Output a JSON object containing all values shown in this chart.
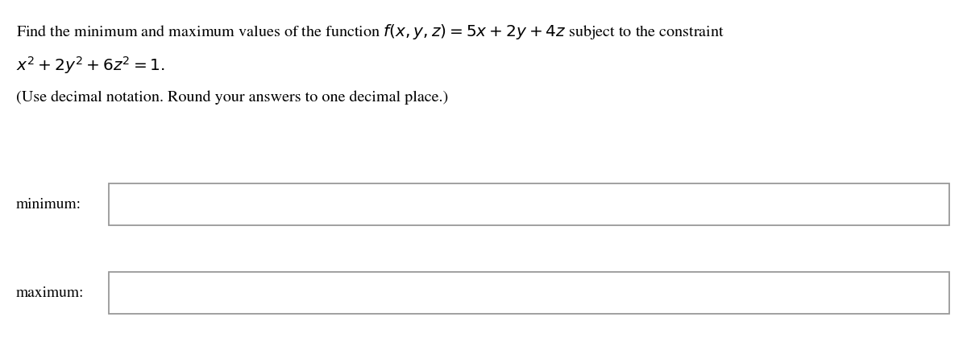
{
  "background_color": "#ffffff",
  "line1": "Find the minimum and maximum values of the function $f(x, y, z) = 5x + 2y + 4z$ subject to the constraint",
  "line2": "$x^2 + 2y^2 + 6z^2 = 1.$",
  "line3": "(Use decimal notation. Round your answers to one decimal place.)",
  "label_minimum": "minimum:",
  "label_maximum": "maximum:",
  "text_color": "#000000",
  "box_edge_color": "#999999",
  "font_size_main": 14.5,
  "font_size_label": 14.0,
  "fig_width": 12.0,
  "fig_height": 4.4,
  "dpi": 100
}
